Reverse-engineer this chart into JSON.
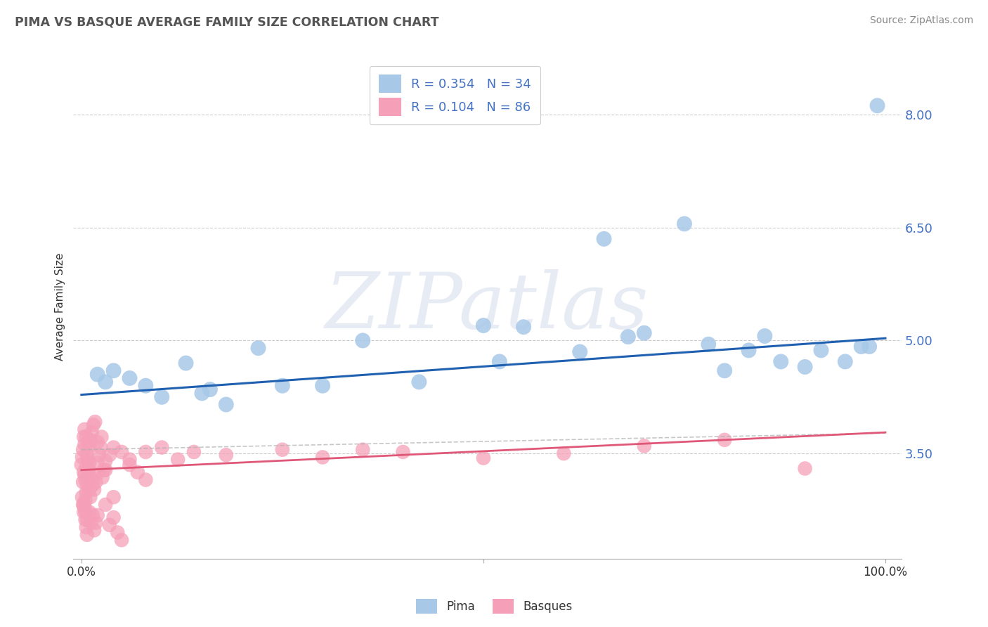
{
  "title": "PIMA VS BASQUE AVERAGE FAMILY SIZE CORRELATION CHART",
  "source_text": "Source: ZipAtlas.com",
  "ylabel": "Average Family Size",
  "watermark": "ZIPatlas",
  "xlim": [
    -0.01,
    1.02
  ],
  "ylim": [
    2.1,
    8.8
  ],
  "yticks": [
    3.5,
    5.0,
    6.5,
    8.0
  ],
  "xticks": [
    0.0,
    1.0
  ],
  "xticklabels": [
    "0.0%",
    "100.0%"
  ],
  "yticklabels": [
    "3.50",
    "5.00",
    "6.50",
    "8.00"
  ],
  "pima_color": "#a8c8e8",
  "basque_color": "#f5a0b8",
  "pima_line_color": "#2060b0",
  "basque_line_color": "#e05878",
  "basque_dashed_color": "#b0b0b0",
  "legend_text_color": "#4472c4",
  "pima_R": 0.354,
  "pima_N": 34,
  "basque_R": 0.104,
  "basque_N": 86,
  "pima_intercept": 4.28,
  "pima_slope": 0.75,
  "basque_intercept": 3.28,
  "basque_slope": 0.5,
  "pima_points_x": [
    0.02,
    0.03,
    0.04,
    0.06,
    0.08,
    0.1,
    0.13,
    0.16,
    0.22,
    0.3,
    0.42,
    0.5,
    0.52,
    0.62,
    0.65,
    0.68,
    0.75,
    0.78,
    0.8,
    0.83,
    0.85,
    0.87,
    0.9,
    0.92,
    0.95,
    0.97,
    0.98,
    0.99,
    0.15,
    0.18,
    0.25,
    0.35,
    0.55,
    0.7
  ],
  "pima_points_y": [
    4.55,
    4.45,
    4.6,
    4.5,
    4.4,
    4.25,
    4.7,
    4.35,
    4.9,
    4.4,
    4.45,
    5.2,
    4.72,
    4.85,
    6.35,
    5.05,
    6.55,
    4.95,
    4.6,
    4.87,
    5.06,
    4.72,
    4.65,
    4.87,
    4.72,
    4.92,
    4.92,
    8.12,
    4.3,
    4.15,
    4.4,
    5.0,
    5.18,
    5.1
  ],
  "basque_points_x": [
    0.0,
    0.001,
    0.002,
    0.003,
    0.004,
    0.005,
    0.006,
    0.007,
    0.008,
    0.009,
    0.01,
    0.011,
    0.012,
    0.013,
    0.014,
    0.015,
    0.016,
    0.017,
    0.018,
    0.019,
    0.02,
    0.022,
    0.024,
    0.026,
    0.028,
    0.03,
    0.035,
    0.04,
    0.05,
    0.06,
    0.08,
    0.1,
    0.12,
    0.14,
    0.18,
    0.25,
    0.3,
    0.35,
    0.4,
    0.5,
    0.6,
    0.7,
    0.8,
    0.9,
    0.001,
    0.002,
    0.003,
    0.004,
    0.005,
    0.006,
    0.007,
    0.008,
    0.009,
    0.01,
    0.011,
    0.002,
    0.003,
    0.004,
    0.005,
    0.006,
    0.007,
    0.008,
    0.003,
    0.004,
    0.005,
    0.006,
    0.007,
    0.01,
    0.012,
    0.014,
    0.016,
    0.018,
    0.02,
    0.025,
    0.03,
    0.035,
    0.04,
    0.045,
    0.05,
    0.06,
    0.07,
    0.08,
    0.01,
    0.02,
    0.03,
    0.04
  ],
  "basque_points_y": [
    3.35,
    3.45,
    3.55,
    3.25,
    3.62,
    3.15,
    3.72,
    3.48,
    3.58,
    3.28,
    3.38,
    3.68,
    3.18,
    3.78,
    3.08,
    3.88,
    3.02,
    3.92,
    3.12,
    3.22,
    3.38,
    3.48,
    3.58,
    3.18,
    3.28,
    3.4,
    3.48,
    3.58,
    3.52,
    3.42,
    3.52,
    3.58,
    3.42,
    3.52,
    3.48,
    3.55,
    3.45,
    3.55,
    3.52,
    3.44,
    3.5,
    3.6,
    3.68,
    3.3,
    2.92,
    2.82,
    2.72,
    2.78,
    2.88,
    2.98,
    3.08,
    3.18,
    3.28,
    3.02,
    2.92,
    3.12,
    2.82,
    3.22,
    2.72,
    3.32,
    2.62,
    3.42,
    3.72,
    3.82,
    2.62,
    2.52,
    2.42,
    3.62,
    2.58,
    2.68,
    2.48,
    2.58,
    3.65,
    3.72,
    3.28,
    2.55,
    2.65,
    2.45,
    2.35,
    3.35,
    3.25,
    3.15,
    2.72,
    2.68,
    2.82,
    2.92
  ]
}
